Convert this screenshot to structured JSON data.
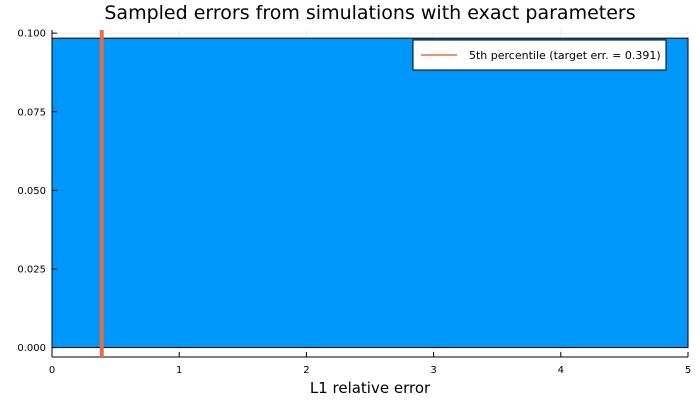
{
  "chart_data": {
    "type": "bar",
    "title": "Sampled errors from simulations with exact parameters",
    "xlabel": "L1 relative error",
    "ylabel": "",
    "xlim": [
      0,
      5
    ],
    "ylim": [
      -0.003,
      0.101
    ],
    "xticks": [
      0,
      1,
      2,
      3,
      4,
      5
    ],
    "yticks": [
      0.0,
      0.025,
      0.05,
      0.075,
      0.1
    ],
    "ytick_labels": [
      "0.000",
      "0.025",
      "0.050",
      "0.075",
      "0.100"
    ],
    "grid": true,
    "legend_position": "top-right",
    "series": [
      {
        "type": "bar",
        "x_range": [
          0,
          5
        ],
        "value": 0.0984,
        "color": "#0097FA"
      },
      {
        "name": "5th percentile (target err. = 0.391)",
        "type": "vline",
        "x": 0.391,
        "color": "#E26F46"
      }
    ]
  }
}
